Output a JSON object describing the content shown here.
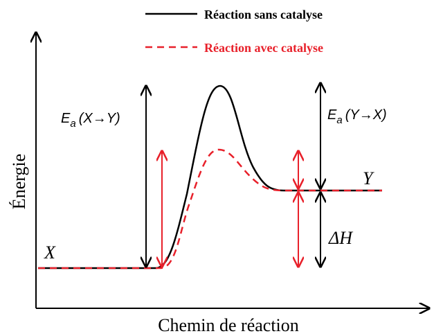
{
  "legend": [
    {
      "label": "Réaction sans catalyse",
      "color": "#000000"
    },
    {
      "label": "Réaction avec catalyse",
      "color": "#e8202a"
    }
  ],
  "labels": {
    "ea_forward": {
      "symbol": "E",
      "subscript": "a",
      "text": "(X→Y)"
    },
    "ea_reverse": {
      "symbol": "E",
      "subscript": "a",
      "text": "(Y→X)"
    },
    "reactant": "X",
    "product": "Y",
    "delta_h": "ΔH"
  },
  "axes": {
    "y_label": "Énergie",
    "x_label": "Chemin de réaction"
  }
}
